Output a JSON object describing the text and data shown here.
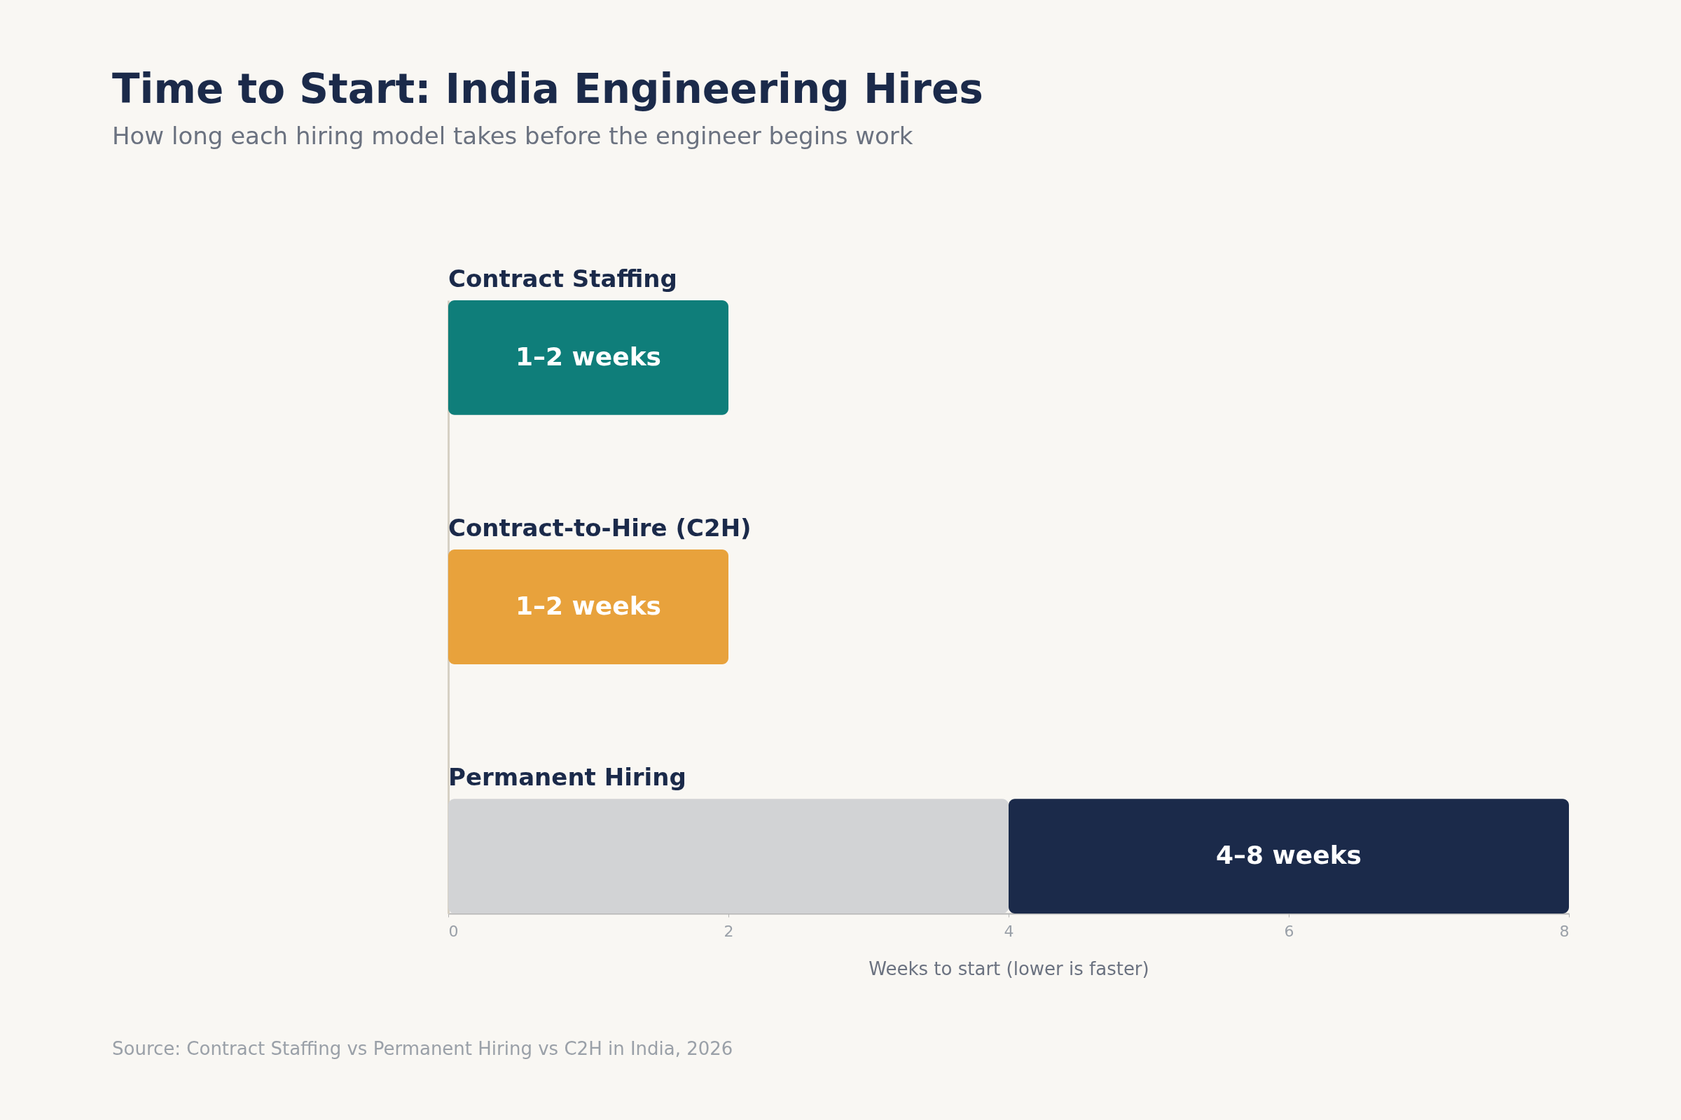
{
  "chart_data": {
    "type": "bar",
    "orientation": "horizontal",
    "stacked": true,
    "title": "Time to Start: India Engineering Hires",
    "subtitle": "How long each hiring model takes before the engineer begins work",
    "xlabel": "Weeks to start (lower is faster)",
    "categories": [
      "Contract Staffing",
      "Contract-to-Hire (C2H)",
      "Permanent Hiring"
    ],
    "series": [
      {
        "colors": [
          "#0f7e7a",
          "#e8a23c",
          "#d2d3d5"
        ],
        "values": [
          2,
          2,
          4
        ]
      },
      {
        "color": "#1b2a4a",
        "values": [
          null,
          null,
          4
        ]
      }
    ],
    "value_labels": [
      "1–2 weeks",
      "1–2 weeks",
      "4–8 weeks"
    ],
    "xlim": [
      0,
      8
    ],
    "xticks": [
      0,
      2,
      4,
      6,
      8
    ],
    "grid": false,
    "annotations": [
      "Source: Contract Staffing vs Permanent Hiring vs C2H in India, 2026"
    ]
  }
}
